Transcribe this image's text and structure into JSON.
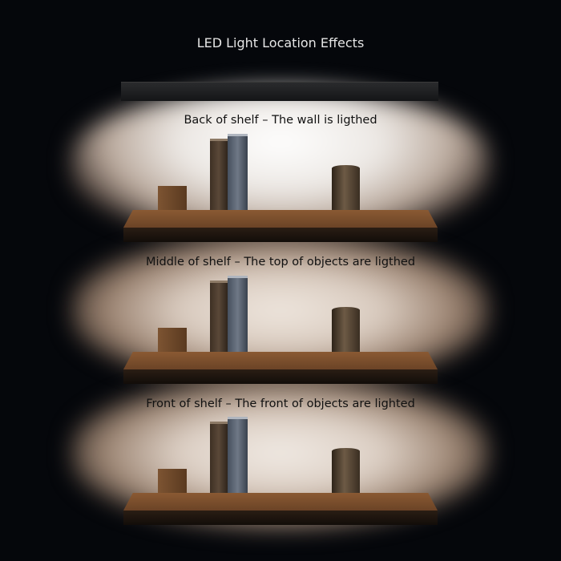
{
  "title": "LED Light Location Effects",
  "panels": [
    {
      "caption": "Back of shelf – The wall is ligthed"
    },
    {
      "caption": "Middle of shelf – The top of objects are ligthed"
    },
    {
      "caption": "Front of shelf – The front of objects are lighted"
    }
  ]
}
